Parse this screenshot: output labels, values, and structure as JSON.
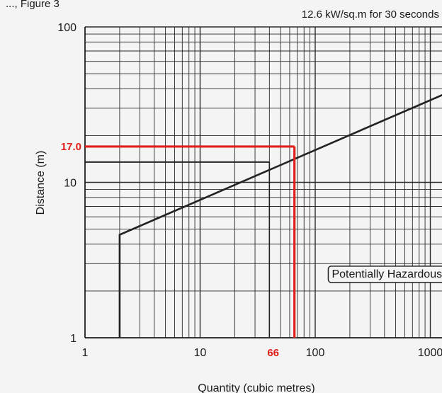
{
  "chart_data": {
    "type": "line",
    "title": "12.6 kW/sq.m for 30 seconds",
    "header_fragment": "..., Figure 3",
    "xlabel": "Quantity (cubic metres)",
    "ylabel": "Distance (m)",
    "x_scale": "log",
    "y_scale": "log",
    "xlim": [
      1,
      1000
    ],
    "ylim": [
      1,
      100
    ],
    "x_ticks": [
      {
        "value": 1,
        "label": "1"
      },
      {
        "value": 10,
        "label": "10"
      },
      {
        "value": 100,
        "label": "100"
      },
      {
        "value": 1000,
        "label": "1000"
      }
    ],
    "y_ticks": [
      {
        "value": 1,
        "label": "1"
      },
      {
        "value": 10,
        "label": "10"
      },
      {
        "value": 100,
        "label": "100"
      }
    ],
    "grid": true,
    "series": [
      {
        "x": [
          2,
          2,
          2800
        ],
        "y": [
          1,
          4.6,
          47
        ],
        "color": "#222222"
      }
    ],
    "highlight": {
      "x": 66,
      "y": 17.0,
      "x_label": "66",
      "y_label": "17.0",
      "color": "#e0201a"
    },
    "secondary_guide": {
      "x": 40,
      "y": 13.5,
      "color": "#222222"
    },
    "annotation": {
      "text": "Potentially Hazardous",
      "x": 420,
      "y": 2.6
    }
  }
}
